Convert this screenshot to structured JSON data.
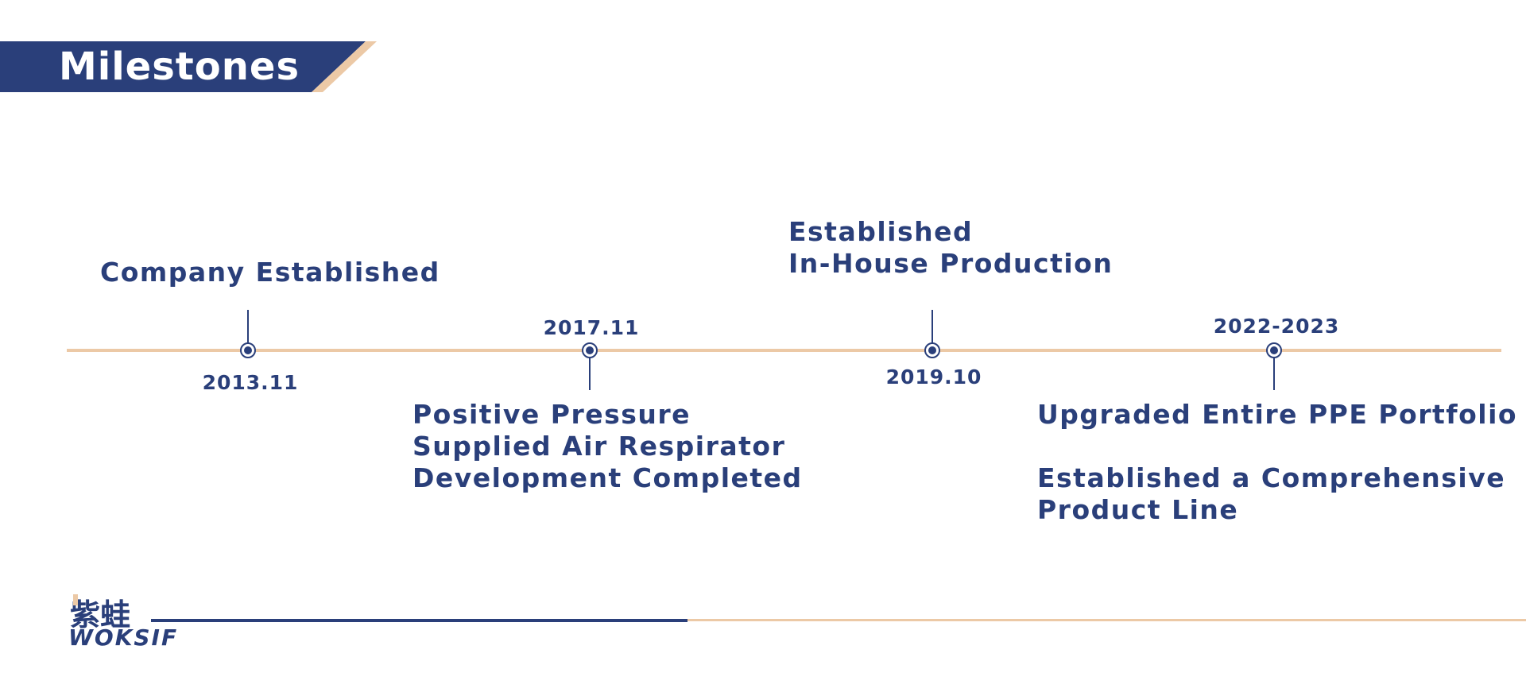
{
  "header": {
    "title": "Milestones"
  },
  "colors": {
    "navy": "#2a3f7a",
    "peach": "#ecc9a6"
  },
  "milestones": [
    {
      "date": "2013.11",
      "lines": [
        "Company Established"
      ]
    },
    {
      "date": "2017.11",
      "lines": [
        "Positive Pressure",
        "Supplied Air Respirator",
        "Development Completed"
      ]
    },
    {
      "date": "2019.10",
      "lines": [
        "Established",
        "In-House Production"
      ]
    },
    {
      "date": "2022-2023",
      "lines": [
        "Upgraded Entire PPE Portfolio",
        "Established a Comprehensive",
        "Product Line"
      ]
    }
  ],
  "logo": {
    "cn": "紫蛙",
    "en": "WOKSIF"
  }
}
